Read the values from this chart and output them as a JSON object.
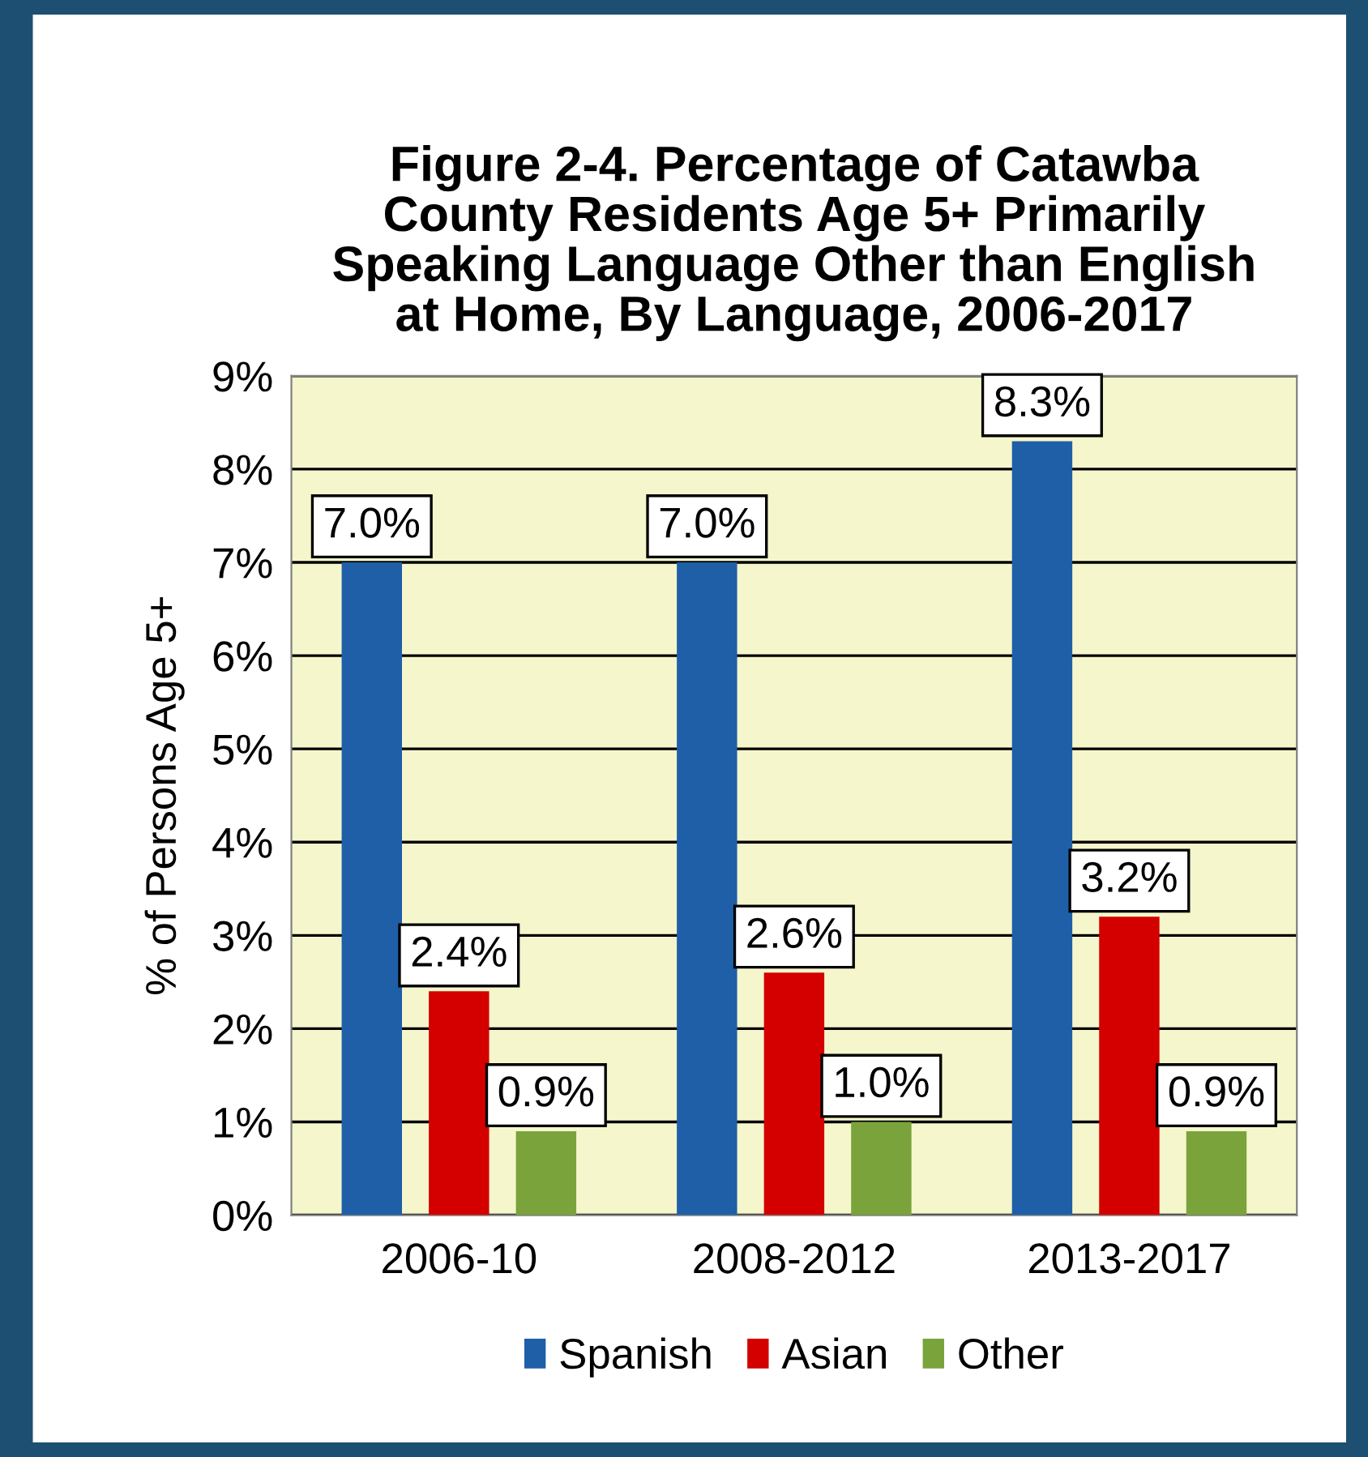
{
  "chart_data": {
    "type": "bar",
    "title": "Figure 2-4. Percentage of Catawba\nCounty Residents Age 5+ Primarily\nSpeaking Language Other than English\nat Home, By Language, 2006-2017",
    "ylabel": "% of Persons Age 5+",
    "categories": [
      "2006-10",
      "2008-2012",
      "2013-2017"
    ],
    "series": [
      {
        "name": "Spanish",
        "color": "#1f5fa8",
        "values": [
          7.0,
          7.0,
          8.3
        ],
        "value_labels": [
          "7.0%",
          "7.0%",
          "8.3%"
        ]
      },
      {
        "name": "Asian",
        "color": "#d40000",
        "values": [
          2.4,
          2.6,
          3.2
        ],
        "value_labels": [
          "2.4%",
          "2.6%",
          "3.2%"
        ]
      },
      {
        "name": "Other",
        "color": "#7aa33c",
        "values": [
          0.9,
          1.0,
          0.9
        ],
        "value_labels": [
          "0.9%",
          "1.0%",
          "0.9%"
        ]
      }
    ],
    "ylim": [
      0,
      9
    ],
    "yticks": [
      {
        "value": 0,
        "label": "0%"
      },
      {
        "value": 1,
        "label": "1%"
      },
      {
        "value": 2,
        "label": "2%"
      },
      {
        "value": 3,
        "label": "3%"
      },
      {
        "value": 4,
        "label": "4%"
      },
      {
        "value": 5,
        "label": "5%"
      },
      {
        "value": 6,
        "label": "6%"
      },
      {
        "value": 7,
        "label": "7%"
      },
      {
        "value": 8,
        "label": "8%"
      },
      {
        "value": 9,
        "label": "9%"
      }
    ],
    "grid": "y",
    "legend": "bottom"
  }
}
